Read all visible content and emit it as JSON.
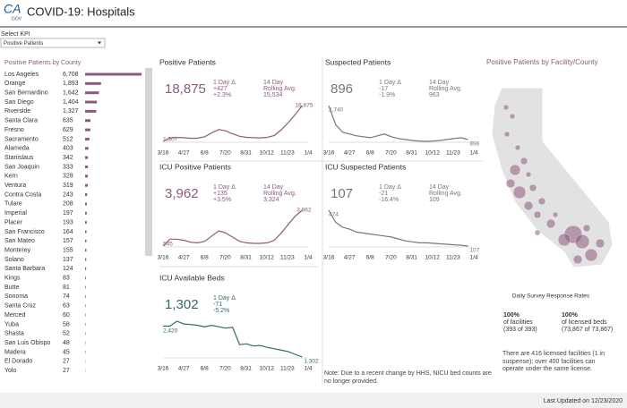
{
  "header": {
    "logo_main": "CA",
    "logo_sub": "GOV",
    "title": "COVID-19: Hospitals"
  },
  "kpi": {
    "label": "Select KPI",
    "selected": "Positive Patients"
  },
  "county": {
    "title": "Positive Patients by County",
    "rows": [
      {
        "name": "Los Angeles",
        "value": 6708,
        "label": "6,708"
      },
      {
        "name": "Orange",
        "value": 1893,
        "label": "1,893"
      },
      {
        "name": "San Bernardino",
        "value": 1642,
        "label": "1,642"
      },
      {
        "name": "San Diego",
        "value": 1404,
        "label": "1,404"
      },
      {
        "name": "Riverside",
        "value": 1327,
        "label": "1,327"
      },
      {
        "name": "Santa Clara",
        "value": 635,
        "label": "635"
      },
      {
        "name": "Fresno",
        "value": 629,
        "label": "629"
      },
      {
        "name": "Sacramento",
        "value": 512,
        "label": "512"
      },
      {
        "name": "Alameda",
        "value": 403,
        "label": "403"
      },
      {
        "name": "Stanislaus",
        "value": 342,
        "label": "342"
      },
      {
        "name": "San Joaquin",
        "value": 333,
        "label": "333"
      },
      {
        "name": "Kern",
        "value": 328,
        "label": "328"
      },
      {
        "name": "Ventura",
        "value": 319,
        "label": "319"
      },
      {
        "name": "Contra Costa",
        "value": 243,
        "label": "243"
      },
      {
        "name": "Tulare",
        "value": 208,
        "label": "208"
      },
      {
        "name": "Imperial",
        "value": 197,
        "label": "197"
      },
      {
        "name": "Placer",
        "value": 193,
        "label": "193"
      },
      {
        "name": "San Francisco",
        "value": 164,
        "label": "164"
      },
      {
        "name": "San Mateo",
        "value": 157,
        "label": "157"
      },
      {
        "name": "Monterey",
        "value": 155,
        "label": "155"
      },
      {
        "name": "Solano",
        "value": 137,
        "label": "137"
      },
      {
        "name": "Santa Barbara",
        "value": 124,
        "label": "124"
      },
      {
        "name": "Kings",
        "value": 83,
        "label": "83"
      },
      {
        "name": "Butte",
        "value": 81,
        "label": "81"
      },
      {
        "name": "Sonoma",
        "value": 74,
        "label": "74"
      },
      {
        "name": "Santa Cruz",
        "value": 63,
        "label": "63"
      },
      {
        "name": "Merced",
        "value": 60,
        "label": "60"
      },
      {
        "name": "Yuba",
        "value": 58,
        "label": "58"
      },
      {
        "name": "Shasta",
        "value": 52,
        "label": "52"
      },
      {
        "name": "San Luis Obispo",
        "value": 48,
        "label": "48"
      },
      {
        "name": "Madera",
        "value": 45,
        "label": "45"
      },
      {
        "name": "El Dorado",
        "value": 27,
        "label": "27"
      },
      {
        "name": "Yolo",
        "value": 27,
        "label": "27"
      }
    ]
  },
  "x_ticks": [
    "3/16",
    "4/27",
    "6/8",
    "7/20",
    "8/31",
    "10/12",
    "11/23",
    "1/4"
  ],
  "panels": [
    {
      "title": "Positive Patients",
      "color": "#8c5a7e",
      "value": "18,875",
      "delta_label": "1 Day Δ",
      "delta": "+427",
      "pct": "+2.3%",
      "avg_label": [
        "14 Day",
        "Rolling Avg."
      ],
      "avg": "15,534",
      "start_label": "1,307",
      "end_label": "18,875",
      "values": [
        1307,
        3000,
        3200,
        3100,
        2800,
        2900,
        3600,
        5500,
        7100,
        6500,
        5000,
        3800,
        3300,
        3100,
        3000,
        3300,
        4200,
        7000,
        10500,
        14500,
        18875
      ]
    },
    {
      "title": "Suspected Patients",
      "color": "#777777",
      "value": "896",
      "delta_label": "1 Day Δ",
      "delta": "-17",
      "pct": "-1.9%",
      "avg_label": [
        "14 Day",
        "Rolling Avg."
      ],
      "avg": "963",
      "start_label": "2,740",
      "end_label": "896",
      "values": [
        2740,
        1700,
        1300,
        1200,
        1100,
        1050,
        1000,
        1100,
        1200,
        1050,
        950,
        900,
        850,
        820,
        800,
        820,
        850,
        900,
        950,
        1000,
        896
      ]
    },
    {
      "title": "ICU Positive Patients",
      "color": "#8c5a7e",
      "value": "3,962",
      "delta_label": "1 Day Δ",
      "delta": "+135",
      "pct": "+3.5%",
      "avg_label": [
        "14 Day",
        "Rolling Avg."
      ],
      "avg": "3,324",
      "start_label": "545",
      "end_label": "3,962",
      "values": [
        545,
        1200,
        1200,
        1100,
        900,
        850,
        1000,
        1500,
        2000,
        1800,
        1400,
        1000,
        850,
        800,
        800,
        850,
        1100,
        1800,
        2600,
        3400,
        3962
      ]
    },
    {
      "title": "ICU Suspected Patients",
      "color": "#777777",
      "value": "107",
      "delta_label": "1 Day Δ",
      "delta": "-21",
      "pct": "-16.4%",
      "avg_label": [
        "14 Day",
        "Rolling Avg."
      ],
      "avg": "109",
      "start_label": "474",
      "end_label": "107",
      "values": [
        474,
        350,
        300,
        280,
        250,
        240,
        230,
        220,
        210,
        200,
        180,
        160,
        150,
        140,
        140,
        135,
        130,
        125,
        120,
        115,
        107
      ]
    },
    {
      "title": "ICU Available Beds",
      "color": "#2e6b6b",
      "value": "1,302",
      "delta_label": "1 Day Δ",
      "delta": "-71",
      "pct": "-5.2%",
      "start_label": "2,420",
      "end_label": "1,302",
      "values": [
        2420,
        2420,
        2600,
        2500,
        2480,
        2450,
        2400,
        2450,
        2400,
        2350,
        2380,
        1750,
        1780,
        1700,
        1720,
        1650,
        1600,
        1550,
        1500,
        1400,
        1302
      ]
    }
  ],
  "note": "Note: Due to a recent change by HHS, NICU bed counts are no longer provided.",
  "map": {
    "title": "Positive Patients by Facility/County"
  },
  "survey": {
    "title": "Daily Survey Response Rates",
    "cols": [
      {
        "pct": "100%",
        "label": "of facilities",
        "detail": "(393 of 393)"
      },
      {
        "pct": "100%",
        "label": "of licensed beds",
        "detail": "(73,867 of 73,867)"
      }
    ],
    "note": "There are 416 licensed facilities (1 in suspense); over 400 facilities can operate under the same license."
  },
  "footer": "Last Updated on 12/23/2020"
}
